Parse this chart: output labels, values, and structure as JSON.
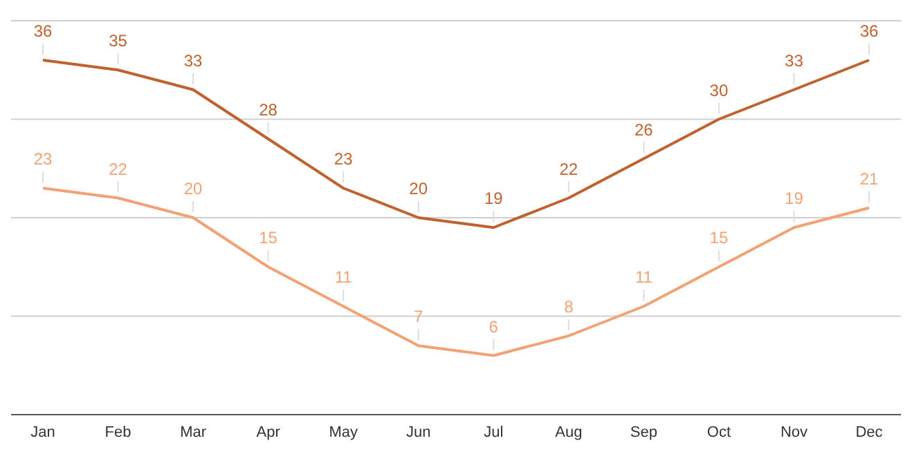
{
  "chart_data": {
    "type": "line",
    "categories": [
      "Jan",
      "Feb",
      "Mar",
      "Apr",
      "May",
      "Jun",
      "Jul",
      "Aug",
      "Sep",
      "Oct",
      "Nov",
      "Dec"
    ],
    "series": [
      {
        "color": "#c0622f",
        "values": [
          36,
          35,
          33,
          28,
          23,
          20,
          19,
          22,
          26,
          30,
          33,
          36
        ]
      },
      {
        "color": "#f2a274",
        "values": [
          23,
          22,
          20,
          15,
          11,
          7,
          6,
          8,
          11,
          15,
          19,
          21
        ]
      }
    ],
    "ylim": [
      0,
      40
    ],
    "grid": "y",
    "tick_labels": "x",
    "data_labels": true,
    "marker": "none",
    "line_style": "solid"
  }
}
